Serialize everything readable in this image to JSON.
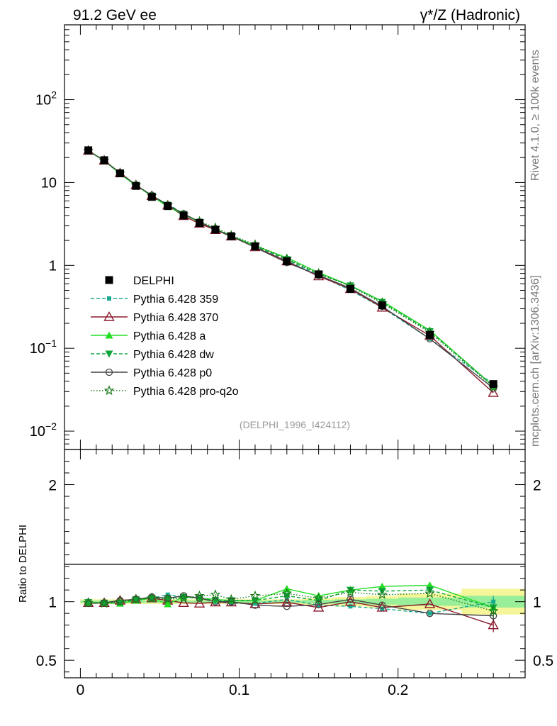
{
  "header": {
    "left_title": "91.2 GeV ee",
    "right_title": "γ*/Z (Hadronic)"
  },
  "side_labels": {
    "rivet": "Rivet 4.1.0, ≥ 100k events",
    "mcplots": "mcplots.cern.ch [arXiv:1306.3436]"
  },
  "analysis_label": "(DELPHI_1996_I424112)",
  "ratio_ylabel": "Ratio to DELPHI",
  "colors": {
    "DELPHI": "#000000",
    "359": "#1aaa8f",
    "370": "#8b1a2e",
    "a": "#22dd22",
    "dw": "#0fa53a",
    "p0": "#444444",
    "proq2o": "#1a7a1a",
    "band_yellow": "#f5f59a",
    "band_green": "#99ee99"
  },
  "chart_data": [
    {
      "type": "line",
      "panel": "main",
      "yscale": "log",
      "xlim": [
        -0.01,
        0.28
      ],
      "ylim": [
        0.006,
        800
      ],
      "ytick_labels": [
        "10^-2",
        "10^-1",
        "1",
        "10",
        "10^2"
      ],
      "x": [
        0.005,
        0.015,
        0.025,
        0.035,
        0.045,
        0.055,
        0.065,
        0.075,
        0.085,
        0.095,
        0.11,
        0.13,
        0.15,
        0.17,
        0.19,
        0.22,
        0.26
      ],
      "series": [
        {
          "name": "DELPHI",
          "key": "DELPHI",
          "values": [
            24.5,
            18.6,
            12.9,
            9.1,
            6.7,
            5.2,
            4.0,
            3.25,
            2.7,
            2.25,
            1.7,
            1.12,
            0.78,
            0.52,
            0.33,
            0.145,
            0.037
          ]
        },
        {
          "name": "Pythia 6.428 359",
          "key": "359",
          "values": [
            24.3,
            18.3,
            12.8,
            9.2,
            6.9,
            5.5,
            4.2,
            3.35,
            2.7,
            2.22,
            1.68,
            1.14,
            0.76,
            0.5,
            0.31,
            0.13,
            0.037
          ]
        },
        {
          "name": "Pythia 6.428 370",
          "key": "370",
          "values": [
            24.2,
            18.4,
            13.0,
            9.3,
            6.9,
            5.3,
            3.95,
            3.2,
            2.68,
            2.24,
            1.66,
            1.12,
            0.74,
            0.52,
            0.31,
            0.142,
            0.029
          ]
        },
        {
          "name": "Pythia 6.428 a",
          "key": "a",
          "values": [
            24.3,
            18.5,
            12.7,
            9.2,
            6.9,
            5.1,
            4.15,
            3.3,
            2.75,
            2.28,
            1.72,
            1.24,
            0.82,
            0.57,
            0.37,
            0.165,
            0.035
          ]
        },
        {
          "name": "Pythia 6.428 dw",
          "key": "dw",
          "values": [
            24.4,
            18.4,
            12.8,
            9.3,
            6.9,
            5.35,
            4.15,
            3.35,
            2.72,
            2.27,
            1.72,
            1.18,
            0.79,
            0.57,
            0.36,
            0.16,
            0.035
          ]
        },
        {
          "name": "Pythia 6.428 p0",
          "key": "p0",
          "values": [
            24.1,
            18.4,
            13.1,
            9.3,
            7.0,
            5.35,
            4.2,
            3.35,
            2.7,
            2.25,
            1.65,
            1.08,
            0.76,
            0.53,
            0.32,
            0.13,
            0.033
          ]
        },
        {
          "name": "Pythia 6.428 pro-q2o",
          "key": "proq2o",
          "values": [
            24.2,
            18.3,
            12.9,
            9.3,
            6.9,
            5.3,
            4.1,
            3.4,
            2.85,
            2.3,
            1.78,
            1.2,
            0.8,
            0.56,
            0.35,
            0.155,
            0.034
          ]
        }
      ]
    },
    {
      "type": "line",
      "panel": "ratio",
      "ylabel": "Ratio to DELPHI",
      "xlim": [
        -0.01,
        0.28
      ],
      "ylim": [
        0.35,
        2.3
      ],
      "ytick_labels": [
        "0.5",
        "1",
        "2"
      ],
      "xtick_labels": [
        "0",
        "0.1",
        "0.2"
      ],
      "x": [
        0.005,
        0.015,
        0.025,
        0.035,
        0.045,
        0.055,
        0.065,
        0.075,
        0.085,
        0.095,
        0.11,
        0.13,
        0.15,
        0.17,
        0.19,
        0.22,
        0.26
      ],
      "data_band": {
        "x_edges": [
          0,
          0.01,
          0.02,
          0.03,
          0.04,
          0.05,
          0.06,
          0.07,
          0.08,
          0.09,
          0.1,
          0.12,
          0.14,
          0.16,
          0.18,
          0.2,
          0.24,
          0.28
        ],
        "total_unc": [
          0.02,
          0.02,
          0.02,
          0.02,
          0.02,
          0.02,
          0.02,
          0.02,
          0.02,
          0.02,
          0.02,
          0.02,
          0.03,
          0.04,
          0.05,
          0.07,
          0.11
        ],
        "stat_unc": [
          0.01,
          0.01,
          0.01,
          0.01,
          0.01,
          0.01,
          0.01,
          0.01,
          0.01,
          0.01,
          0.01,
          0.01,
          0.015,
          0.02,
          0.025,
          0.035,
          0.05
        ]
      },
      "series": [
        {
          "name": "Pythia 6.428 359",
          "key": "359",
          "values": [
            0.99,
            0.985,
            0.99,
            1.01,
            1.03,
            1.06,
            1.04,
            1.03,
            1.0,
            0.985,
            0.985,
            1.02,
            0.97,
            0.96,
            0.94,
            0.9,
            1.0
          ]
        },
        {
          "name": "Pythia 6.428 370",
          "key": "370",
          "values": [
            0.99,
            0.99,
            1.01,
            1.02,
            1.03,
            1.01,
            0.99,
            0.985,
            0.995,
            0.995,
            0.98,
            0.995,
            0.95,
            1.0,
            0.95,
            0.98,
            0.8
          ]
        },
        {
          "name": "Pythia 6.428 a",
          "key": "a",
          "values": [
            0.99,
            0.99,
            0.985,
            1.01,
            1.03,
            0.98,
            1.04,
            1.03,
            1.02,
            1.01,
            1.01,
            1.11,
            1.05,
            1.1,
            1.13,
            1.14,
            0.95
          ]
        },
        {
          "name": "Pythia 6.428 dw",
          "key": "dw",
          "values": [
            0.995,
            0.99,
            0.99,
            1.02,
            1.03,
            1.03,
            1.04,
            1.03,
            1.01,
            1.01,
            1.01,
            1.05,
            1.01,
            1.1,
            1.09,
            1.1,
            0.95
          ]
        },
        {
          "name": "Pythia 6.428 p0",
          "key": "p0",
          "values": [
            0.985,
            0.99,
            1.01,
            1.02,
            1.04,
            1.03,
            1.05,
            1.03,
            1.0,
            1.0,
            0.97,
            0.96,
            0.975,
            1.02,
            0.97,
            0.9,
            0.88
          ]
        },
        {
          "name": "Pythia 6.428 pro-q2o",
          "key": "proq2o",
          "values": [
            0.99,
            0.985,
            1.0,
            1.02,
            1.03,
            1.02,
            1.03,
            1.05,
            1.06,
            1.02,
            1.05,
            1.07,
            1.03,
            1.08,
            1.06,
            1.07,
            0.92
          ]
        }
      ]
    }
  ],
  "legend": [
    {
      "label": "DELPHI",
      "key": "DELPHI",
      "marker": "square",
      "dash": "none"
    },
    {
      "label": "Pythia 6.428 359",
      "key": "359",
      "marker": "small-square",
      "dash": "dashed"
    },
    {
      "label": "Pythia 6.428 370",
      "key": "370",
      "marker": "open-triangle",
      "dash": "solid"
    },
    {
      "label": "Pythia 6.428 a",
      "key": "a",
      "marker": "triangle",
      "dash": "solid"
    },
    {
      "label": "Pythia 6.428 dw",
      "key": "dw",
      "marker": "triangle-down",
      "dash": "dashed"
    },
    {
      "label": "Pythia 6.428 p0",
      "key": "p0",
      "marker": "open-circle",
      "dash": "solid"
    },
    {
      "label": "Pythia 6.428 pro-q2o",
      "key": "proq2o",
      "marker": "open-star",
      "dash": "dotted"
    }
  ]
}
